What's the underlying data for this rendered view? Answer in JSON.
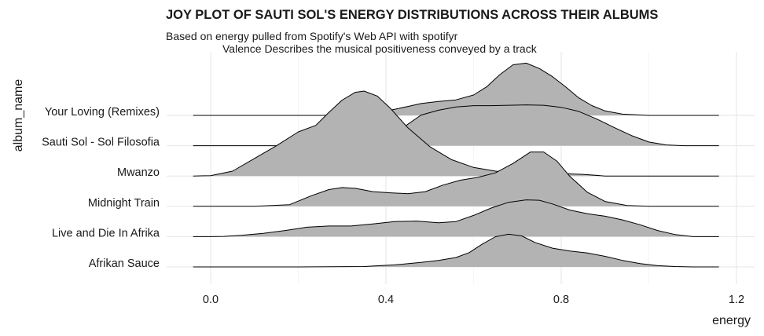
{
  "chart_data": {
    "type": "ridgeline",
    "title": "JOY PLOT OF SAUTI SOL'S ENERGY DISTRIBUTIONS ACROSS THEIR ALBUMS",
    "subtitle": "Based on energy pulled from Spotify's Web API with spotifyr",
    "caption": "Valence Describes the musical positiveness conveyed by a track",
    "xlabel": "energy",
    "ylabel": "album_name",
    "xlim": [
      -0.05,
      1.2
    ],
    "x_ticks": [
      0.0,
      0.4,
      0.8,
      1.2
    ],
    "x_tick_labels": [
      "0.0",
      "0.4",
      "0.8",
      "1.2"
    ],
    "grid": "on",
    "fill_color": "#b3b3b3",
    "line_color": "#000000",
    "series": [
      {
        "name": "Afrikan Sauce",
        "x": [
          -0.04,
          0.2,
          0.35,
          0.42,
          0.48,
          0.52,
          0.56,
          0.59,
          0.62,
          0.65,
          0.68,
          0.71,
          0.74,
          0.78,
          0.82,
          0.86,
          0.9,
          0.94,
          0.98,
          1.02,
          1.06,
          1.1,
          1.16
        ],
        "y": [
          0,
          0,
          0.01,
          0.05,
          0.11,
          0.16,
          0.23,
          0.35,
          0.56,
          0.74,
          0.8,
          0.76,
          0.6,
          0.46,
          0.39,
          0.34,
          0.26,
          0.16,
          0.08,
          0.03,
          0.01,
          0,
          0
        ]
      },
      {
        "name": "Live and Die In Afrika",
        "x": [
          -0.04,
          0.0,
          0.03,
          0.07,
          0.12,
          0.17,
          0.22,
          0.27,
          0.32,
          0.37,
          0.42,
          0.47,
          0.52,
          0.56,
          0.6,
          0.64,
          0.68,
          0.72,
          0.75,
          0.78,
          0.82,
          0.86,
          0.9,
          0.94,
          0.98,
          1.02,
          1.06,
          1.1,
          1.16
        ],
        "y": [
          0,
          0,
          0.005,
          0.03,
          0.08,
          0.15,
          0.23,
          0.26,
          0.26,
          0.31,
          0.37,
          0.38,
          0.34,
          0.37,
          0.52,
          0.7,
          0.84,
          0.9,
          0.89,
          0.8,
          0.65,
          0.56,
          0.5,
          0.41,
          0.29,
          0.15,
          0.05,
          0,
          0
        ]
      },
      {
        "name": "Midnight Train",
        "x": [
          -0.04,
          0.1,
          0.18,
          0.23,
          0.27,
          0.3,
          0.33,
          0.37,
          0.41,
          0.45,
          0.49,
          0.53,
          0.57,
          0.61,
          0.65,
          0.69,
          0.73,
          0.76,
          0.79,
          0.82,
          0.86,
          0.9,
          0.95,
          1.0,
          1.16
        ],
        "y": [
          0,
          0,
          0.04,
          0.26,
          0.41,
          0.46,
          0.44,
          0.36,
          0.33,
          0.31,
          0.36,
          0.52,
          0.64,
          0.71,
          0.82,
          1.05,
          1.33,
          1.33,
          1.11,
          0.73,
          0.34,
          0.12,
          0.02,
          0,
          0
        ]
      },
      {
        "name": "Mwanzo",
        "x": [
          -0.04,
          0.0,
          0.05,
          0.1,
          0.15,
          0.2,
          0.24,
          0.27,
          0.3,
          0.33,
          0.35,
          0.38,
          0.41,
          0.45,
          0.5,
          0.55,
          0.6,
          0.65,
          0.7,
          0.75,
          0.8,
          0.85,
          0.9,
          1.16
        ],
        "y": [
          0,
          0.01,
          0.12,
          0.43,
          0.74,
          1.08,
          1.24,
          1.56,
          1.86,
          2.05,
          2.08,
          1.96,
          1.66,
          1.18,
          0.72,
          0.4,
          0.21,
          0.12,
          0.07,
          0.05,
          0.06,
          0.04,
          0,
          0
        ]
      },
      {
        "name": "Sauti Sol - Sol Filosofia",
        "x": [
          -0.04,
          0.15,
          0.25,
          0.32,
          0.36,
          0.4,
          0.44,
          0.48,
          0.52,
          0.56,
          0.6,
          0.64,
          0.68,
          0.72,
          0.76,
          0.8,
          0.84,
          0.88,
          0.92,
          0.96,
          1.0,
          1.04,
          1.08,
          1.16
        ],
        "y": [
          0,
          0,
          0.01,
          0.04,
          0.1,
          0.21,
          0.45,
          0.75,
          0.87,
          0.95,
          0.98,
          0.98,
          0.99,
          1.0,
          0.99,
          0.94,
          0.84,
          0.66,
          0.45,
          0.25,
          0.09,
          0.02,
          0,
          0
        ]
      },
      {
        "name": "Your Loving (Remixes)",
        "x": [
          -0.04,
          0.25,
          0.33,
          0.38,
          0.42,
          0.45,
          0.48,
          0.52,
          0.56,
          0.6,
          0.63,
          0.66,
          0.69,
          0.72,
          0.75,
          0.78,
          0.81,
          0.84,
          0.87,
          0.9,
          0.94,
          1.0,
          1.16
        ],
        "y": [
          0,
          0,
          0.02,
          0.07,
          0.15,
          0.22,
          0.29,
          0.34,
          0.38,
          0.5,
          0.7,
          1.0,
          1.24,
          1.28,
          1.15,
          0.95,
          0.7,
          0.43,
          0.24,
          0.11,
          0.03,
          0,
          0
        ]
      }
    ]
  }
}
